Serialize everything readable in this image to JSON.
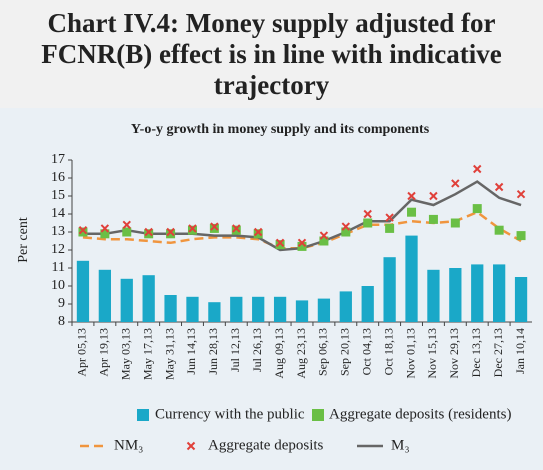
{
  "chart_data": {
    "type": "combo",
    "title": "Chart IV.4: Money supply adjusted for FCNR(B) effect is in line with indicative trajectory",
    "subtitle": "Y-o-y growth in money supply and its components",
    "y_label": "Per cent",
    "categories": [
      "Apr 05,13",
      "Apr 19,13",
      "May 03,13",
      "May 17,13",
      "May 31,13",
      "Jun 14,13",
      "Jun 28,13",
      "Jul 12,13",
      "Jul 26,13",
      "Aug 09,13",
      "Aug 23,13",
      "Sep 06,13",
      "Sep 20,13",
      "Oct 04,13",
      "Oct 18,13",
      "Nov 01,13",
      "Nov 15,13",
      "Nov 29,13",
      "Dec 13,13",
      "Dec 27,13",
      "Jan 10,14"
    ],
    "ylim": [
      8,
      17
    ],
    "yticks": [
      8,
      9,
      10,
      11,
      12,
      13,
      14,
      15,
      16,
      17
    ],
    "series": [
      {
        "name": "Currency with the public",
        "mark": "bar",
        "color": "#1aa8c8",
        "values": [
          11.4,
          10.9,
          10.4,
          10.6,
          9.5,
          9.4,
          9.1,
          9.4,
          9.4,
          9.4,
          9.2,
          9.3,
          9.7,
          10.0,
          11.6,
          12.8,
          10.9,
          11.0,
          11.2,
          11.2,
          10.5
        ]
      },
      {
        "name": "Aggregate deposits (residents)",
        "mark": "square",
        "color": "#6abf45",
        "values": [
          13.0,
          12.9,
          13.0,
          12.9,
          12.9,
          13.1,
          13.2,
          13.1,
          12.9,
          12.3,
          12.2,
          12.5,
          13.0,
          13.5,
          13.2,
          14.1,
          13.7,
          13.5,
          14.3,
          13.1,
          12.8
        ]
      },
      {
        "name": "NM₃",
        "mark": "dashed",
        "color": "#f0953e",
        "values": [
          12.7,
          12.6,
          12.6,
          12.5,
          12.4,
          12.6,
          12.7,
          12.7,
          12.6,
          12.1,
          12.1,
          12.4,
          12.9,
          13.4,
          13.4,
          13.6,
          13.5,
          13.6,
          14.1,
          13.2,
          12.5
        ]
      },
      {
        "name": "Aggregate deposits",
        "mark": "cross",
        "color": "#e0403a",
        "values": [
          13.1,
          13.2,
          13.4,
          13.0,
          13.0,
          13.2,
          13.3,
          13.2,
          13.0,
          12.4,
          12.4,
          12.8,
          13.3,
          14.0,
          13.8,
          15.0,
          15.0,
          15.7,
          16.5,
          15.5,
          15.1
        ]
      },
      {
        "name": "M₃",
        "mark": "line",
        "color": "#666666",
        "values": [
          12.9,
          12.9,
          13.1,
          12.9,
          12.9,
          12.9,
          12.8,
          12.8,
          12.7,
          12.0,
          12.1,
          12.5,
          13.0,
          13.6,
          13.6,
          14.8,
          14.5,
          15.1,
          15.8,
          14.9,
          14.5
        ]
      }
    ]
  }
}
